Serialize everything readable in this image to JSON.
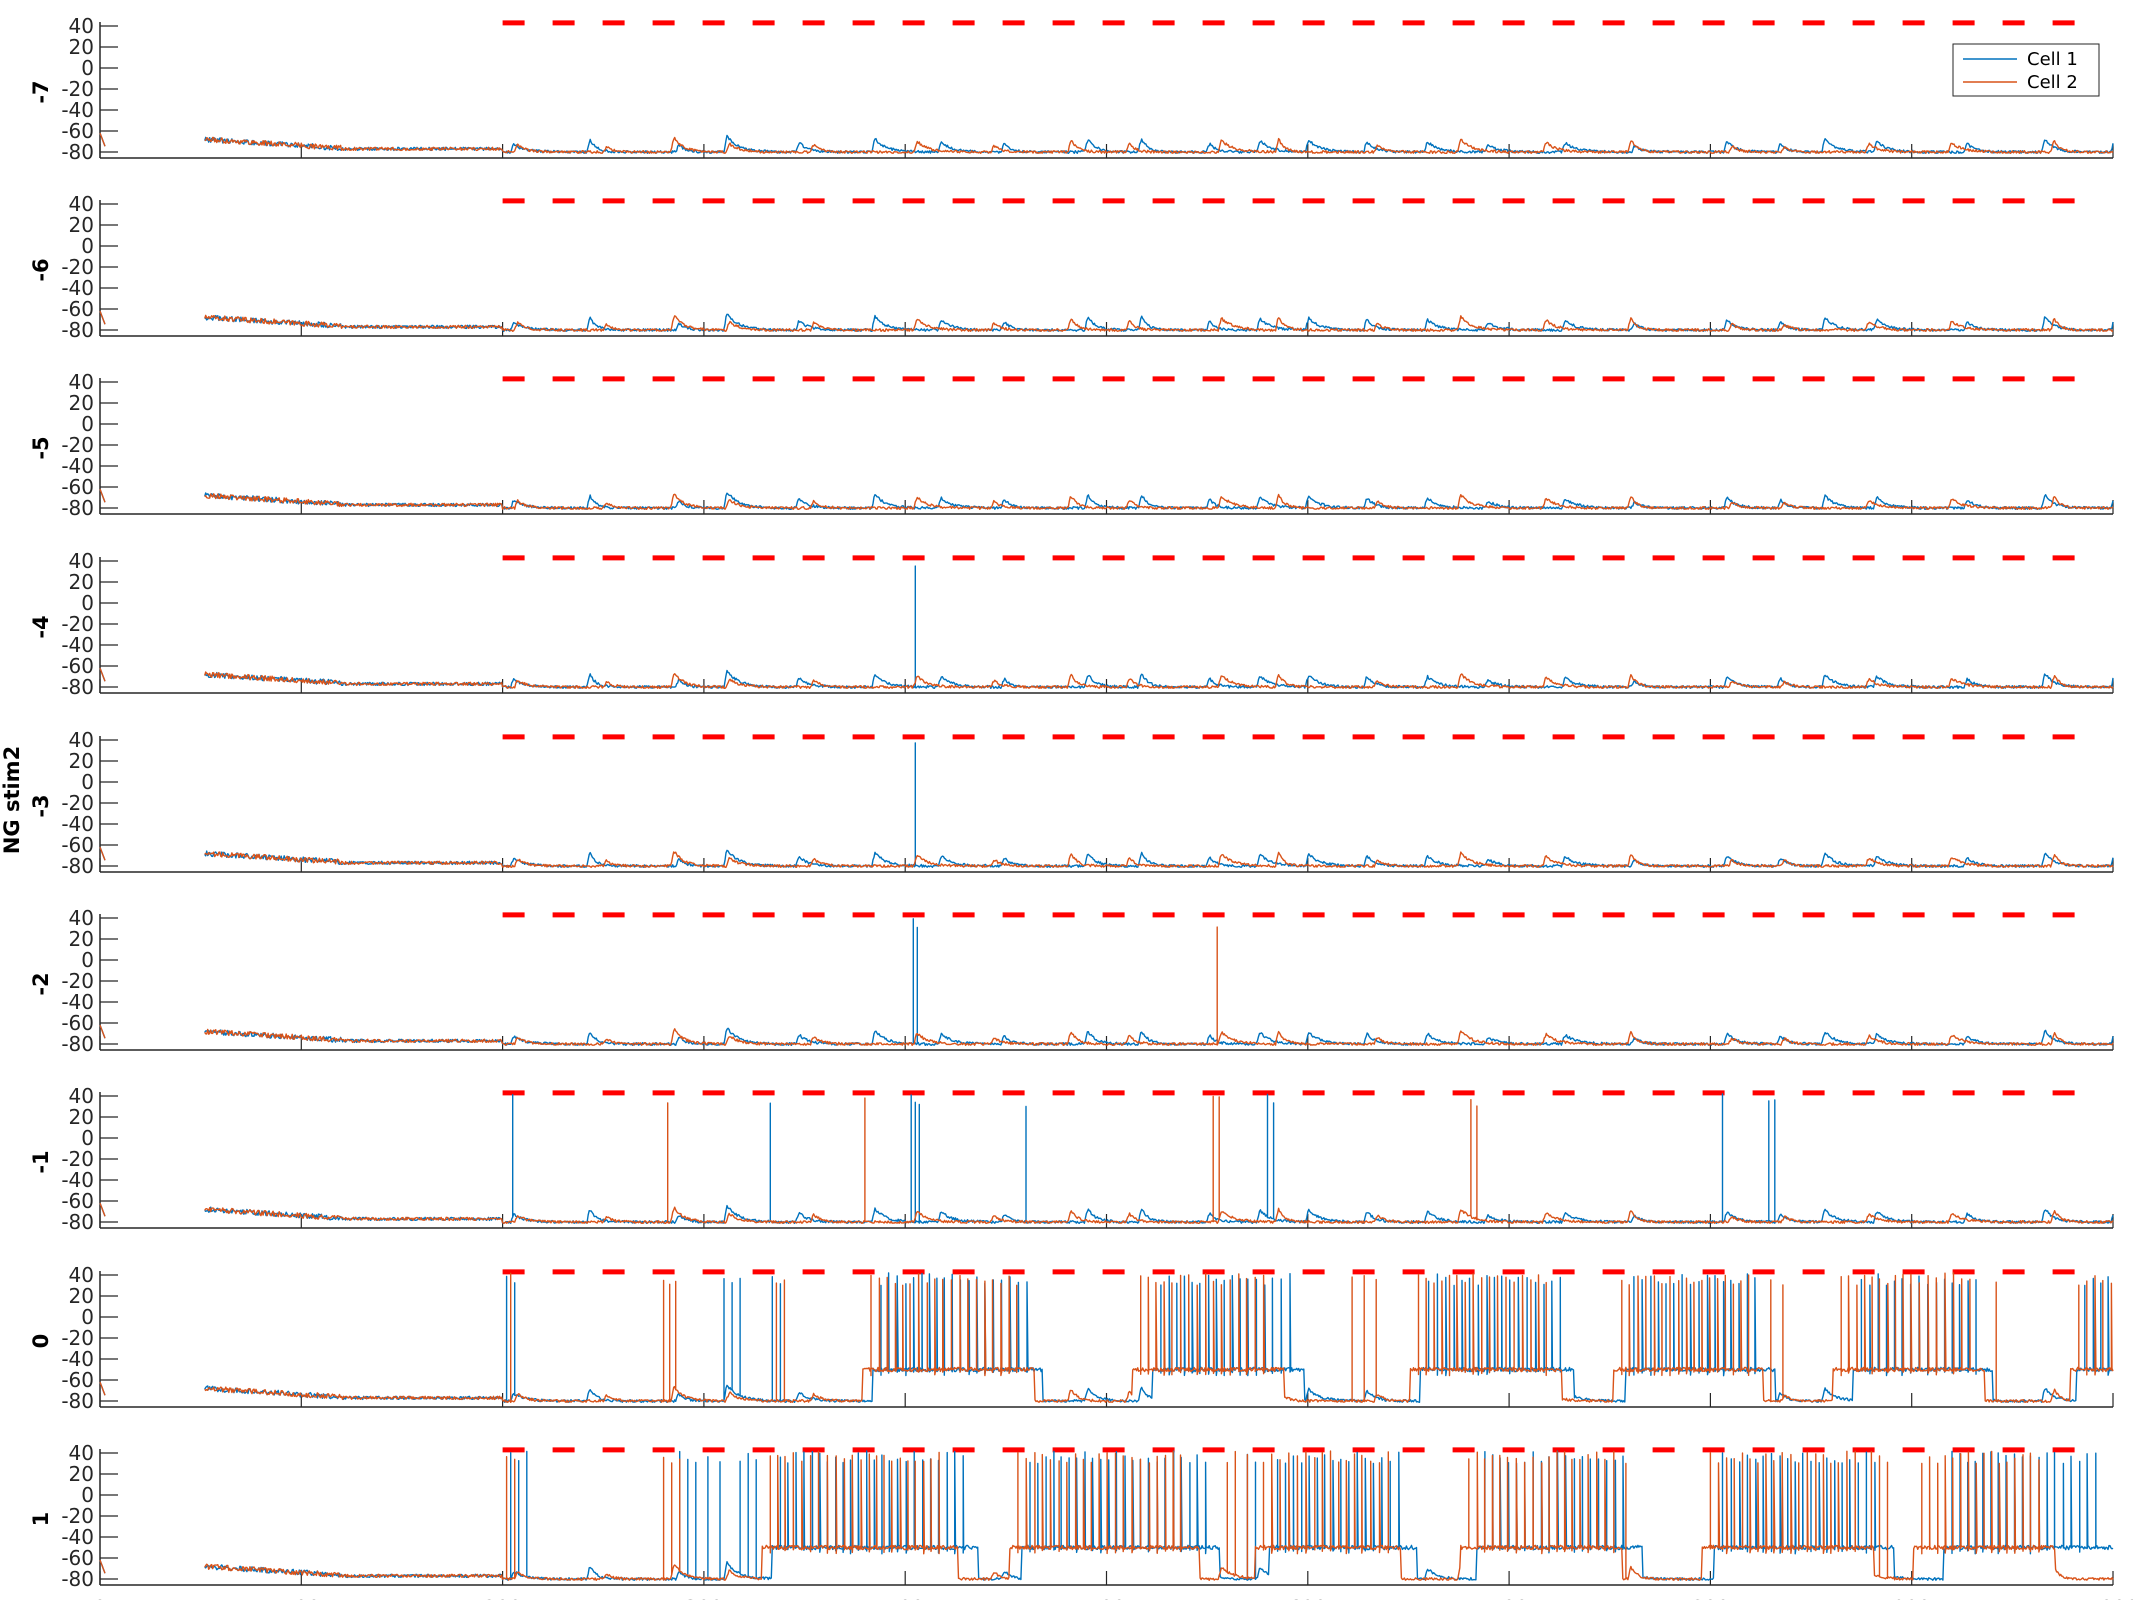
{
  "chart_data": {
    "type": "line",
    "ylabel": "NG stim2",
    "x_range": [
      0,
      1000
    ],
    "x_ticks": [
      0,
      100,
      200,
      300,
      400,
      500,
      600,
      700,
      800,
      900,
      1000
    ],
    "y_range": [
      -80,
      40
    ],
    "y_ticks": [
      40,
      20,
      0,
      -20,
      -40,
      -60,
      -80
    ],
    "legend": {
      "placement": "top-right",
      "entries": [
        "Cell 1",
        "Cell 2"
      ]
    },
    "colors": {
      "Cell 1": "#0072BD",
      "Cell 2": "#D95319",
      "stimulus": "#FF0000"
    },
    "stimulus": {
      "style": "dashed",
      "y": 43,
      "x_start": 200,
      "x_end": 985
    },
    "rows": [
      {
        "label": "-7",
        "cell1_spikes": [],
        "cell2_spikes": [],
        "bursts": []
      },
      {
        "label": "-6",
        "cell1_spikes": [],
        "cell2_spikes": [],
        "bursts": []
      },
      {
        "label": "-5",
        "cell1_spikes": [],
        "cell2_spikes": [],
        "bursts": []
      },
      {
        "label": "-4",
        "cell1_spikes": [
          405
        ],
        "cell2_spikes": [],
        "bursts": []
      },
      {
        "label": "-3",
        "cell1_spikes": [
          405
        ],
        "cell2_spikes": [],
        "bursts": []
      },
      {
        "label": "-2",
        "cell1_spikes": [
          404,
          406
        ],
        "cell2_spikes": [
          555
        ],
        "bursts": []
      },
      {
        "label": "-1",
        "cell1_spikes": [
          205,
          333,
          403,
          405,
          407,
          460,
          580,
          583,
          806,
          829,
          832
        ],
        "cell2_spikes": [
          282,
          380,
          553,
          556,
          681,
          684
        ],
        "bursts": []
      },
      {
        "label": "0",
        "cell1_spikes": [
          202,
          206,
          310,
          314,
          318,
          334,
          338
        ],
        "cell2_spikes": [
          204,
          280,
          283,
          286,
          336,
          340,
          622,
          628,
          634,
          830,
          836,
          942
        ],
        "bursts": [
          {
            "start": 383,
            "end": 458,
            "cell": 2
          },
          {
            "start": 388,
            "end": 462,
            "cell": 1
          },
          {
            "start": 517,
            "end": 582,
            "cell": 2
          },
          {
            "start": 527,
            "end": 592,
            "cell": 1
          },
          {
            "start": 655,
            "end": 720,
            "cell": 2
          },
          {
            "start": 660,
            "end": 726,
            "cell": 1
          },
          {
            "start": 756,
            "end": 820,
            "cell": 2
          },
          {
            "start": 762,
            "end": 826,
            "cell": 1
          },
          {
            "start": 865,
            "end": 930,
            "cell": 2
          },
          {
            "start": 875,
            "end": 934,
            "cell": 1
          },
          {
            "start": 983,
            "end": 1000,
            "cell": 2
          },
          {
            "start": 986,
            "end": 1000,
            "cell": 1
          }
        ]
      },
      {
        "label": "1",
        "cell1_spikes": [
          204,
          208,
          212,
          288,
          292,
          296,
          302,
          308,
          318,
          322,
          326,
          570,
          574,
          920,
          924
        ],
        "cell2_spikes": [
          202,
          206,
          280,
          284,
          288,
          560,
          564,
          570,
          752,
          758,
          880,
          884,
          888
        ],
        "bursts": [
          {
            "start": 333,
            "end": 420,
            "cell": 2
          },
          {
            "start": 338,
            "end": 430,
            "cell": 1
          },
          {
            "start": 456,
            "end": 540,
            "cell": 2
          },
          {
            "start": 462,
            "end": 550,
            "cell": 1
          },
          {
            "start": 578,
            "end": 640,
            "cell": 2
          },
          {
            "start": 585,
            "end": 648,
            "cell": 1
          },
          {
            "start": 680,
            "end": 750,
            "cell": 2
          },
          {
            "start": 688,
            "end": 760,
            "cell": 1
          },
          {
            "start": 800,
            "end": 875,
            "cell": 2
          },
          {
            "start": 806,
            "end": 885,
            "cell": 1
          },
          {
            "start": 905,
            "end": 965,
            "cell": 2
          },
          {
            "start": 920,
            "end": 995,
            "cell": 1
          }
        ]
      }
    ]
  }
}
